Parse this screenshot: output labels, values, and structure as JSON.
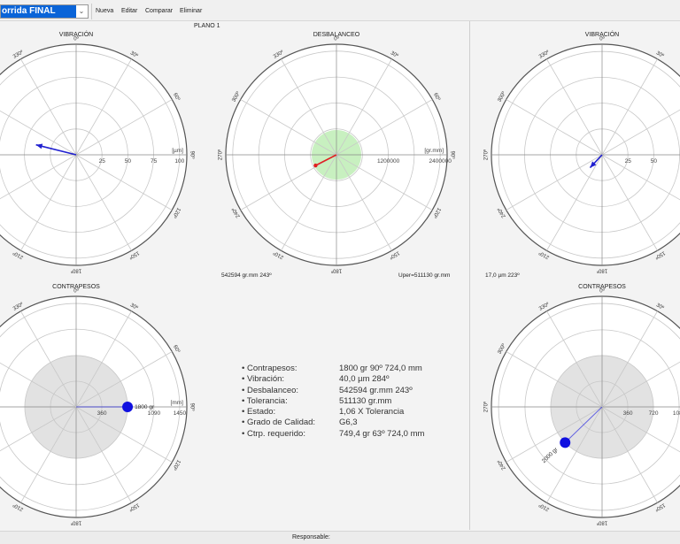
{
  "toolbar": {
    "combo_value": "orrida FINAL",
    "buttons": [
      "Nueva",
      "Editar",
      "Comparar",
      "Eliminar"
    ]
  },
  "plane_label": "PLANO 1",
  "titles": {
    "vib_left": "VIBRACIÓN",
    "desb": "DESBALANCEO",
    "vib_right": "VIBRACIÓN",
    "cp_left": "CONTRAPESOS",
    "cp_right": "CONTRAPESOS"
  },
  "captions": {
    "desb_left": "542594 gr.mm 243º",
    "desb_right": "Uper=511130 gr.mm",
    "vib_right": "17,0 µm 223º"
  },
  "info": [
    {
      "k": "• Contrapesos:",
      "v": "1800 gr 90º 724,0 mm"
    },
    {
      "k": "• Vibración:",
      "v": "40,0 µm 284º"
    },
    {
      "k": "• Desbalanceo:",
      "v": "542594 gr.mm 243º"
    },
    {
      "k": "• Tolerancia:",
      "v": "511130 gr.mm"
    },
    {
      "k": "• Estado:",
      "v": "1,06 X Tolerancia"
    },
    {
      "k": "• Grado de Calidad:",
      "v": "G6,3"
    },
    {
      "k": "• Ctrp. requerido:",
      "v": "749,4 gr 63º 724,0 mm"
    }
  ],
  "status": {
    "responsable": "Responsable:"
  },
  "chart_data": [
    {
      "type": "polar",
      "id": "vib_left",
      "unit": "[µm]",
      "rings": [
        25,
        50,
        75,
        100
      ],
      "ring_labels": [
        "25",
        "50",
        "75",
        "100"
      ],
      "max": 107,
      "angle_labels": [
        "0º",
        "30º",
        "60º",
        "90º",
        "120º",
        "150º",
        "180º",
        "210º",
        "240º",
        "270º",
        "300º",
        "330º"
      ],
      "vector": {
        "magnitude": 40,
        "angle": 284,
        "color": "#2020d0",
        "style": "arrow"
      }
    },
    {
      "type": "polar",
      "id": "desb",
      "unit": "[gr.mm]",
      "rings": [
        600000,
        1200000,
        1800000,
        2400000
      ],
      "ring_labels": [
        "",
        "1200000",
        "",
        "2400000"
      ],
      "max": 2560000,
      "tolerance_zone": {
        "value": 511130,
        "color": "#c8f0c0"
      },
      "angle_labels": [
        "0º",
        "30º",
        "60º",
        "90º",
        "120º",
        "150º",
        "180º",
        "210º",
        "240º",
        "270º",
        "300º",
        "330º"
      ],
      "vector": {
        "magnitude": 542594,
        "angle": 243,
        "color": "#e02020",
        "style": "dot"
      }
    },
    {
      "type": "polar",
      "id": "vib_right",
      "unit": "",
      "rings": [
        25,
        50,
        75,
        100
      ],
      "ring_labels": [
        "25",
        "50",
        "",
        ""
      ],
      "max": 107,
      "angle_labels": [
        "0º",
        "30º",
        "60º",
        "90º",
        "120º",
        "150º",
        "180º",
        "210º",
        "240º",
        "270º",
        "300º",
        "330º"
      ],
      "vector": {
        "magnitude": 17,
        "angle": 223,
        "color": "#2020d0",
        "style": "arrow"
      }
    },
    {
      "type": "polar",
      "id": "cp_left",
      "unit": "[mm]",
      "rings": [
        360,
        720,
        1090,
        1450
      ],
      "ring_labels": [
        "360",
        "",
        "1090",
        "1450"
      ],
      "max": 1550,
      "grey_zone": {
        "value": 720,
        "color": "#e2e2e2"
      },
      "angle_labels": [
        "0º",
        "30º",
        "60º",
        "90º",
        "120º",
        "150º",
        "180º",
        "210º",
        "240º",
        "270º",
        "300º",
        "330º"
      ],
      "vector": {
        "magnitude": 720,
        "angle": 90,
        "color": "#1010e0",
        "style": "weight",
        "label": "1800 gr"
      }
    },
    {
      "type": "polar",
      "id": "cp_right",
      "unit": "",
      "rings": [
        360,
        720,
        1080,
        1450
      ],
      "ring_labels": [
        "360",
        "720",
        "1080",
        ""
      ],
      "max": 1550,
      "grey_zone": {
        "value": 720,
        "color": "#e2e2e2"
      },
      "angle_labels": [
        "0º",
        "30º",
        "60º",
        "90º",
        "120º",
        "150º",
        "180º",
        "210º",
        "240º",
        "270º",
        "300º",
        "330º"
      ],
      "vector": {
        "magnitude": 720,
        "angle": 226,
        "color": "#1010e0",
        "style": "weight",
        "label": "2000 gr"
      }
    }
  ]
}
